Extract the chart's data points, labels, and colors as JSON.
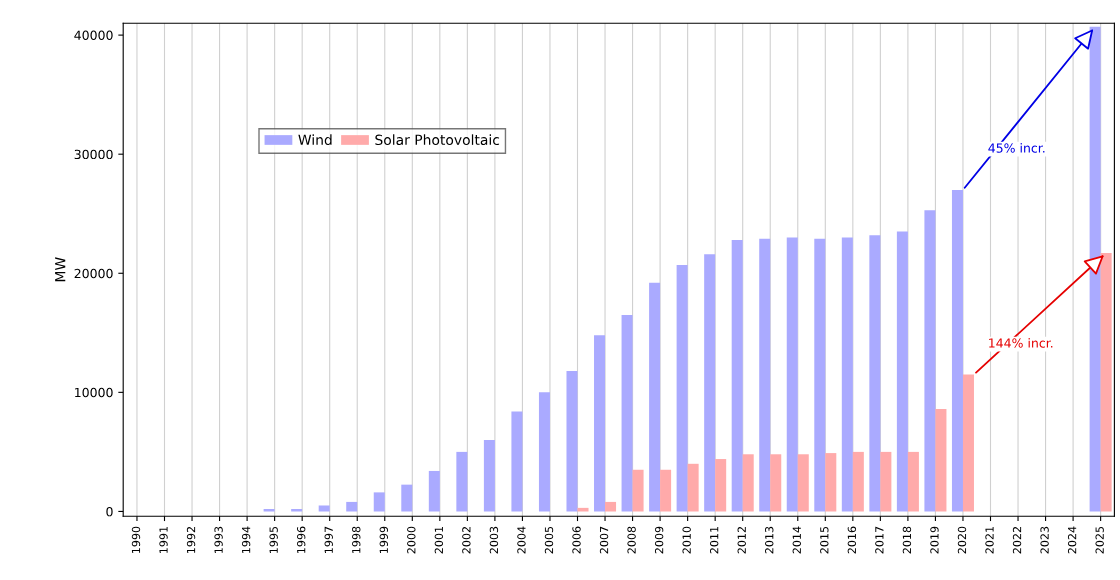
{
  "chart_data": {
    "type": "bar",
    "ylabel": "MW",
    "categories": [
      "1990",
      "1991",
      "1992",
      "1993",
      "1994",
      "1995",
      "1996",
      "1997",
      "1998",
      "1999",
      "2000",
      "2001",
      "2002",
      "2003",
      "2004",
      "2005",
      "2006",
      "2007",
      "2008",
      "2009",
      "2010",
      "2011",
      "2012",
      "2013",
      "2014",
      "2015",
      "2016",
      "2017",
      "2018",
      "2019",
      "2020",
      "2021",
      "2022",
      "2023",
      "2024",
      "2025"
    ],
    "series": [
      {
        "name": "Wind",
        "color": "#aaaaff",
        "values": [
          0,
          0,
          0,
          0,
          0,
          200,
          200,
          500,
          800,
          1600,
          2250,
          3400,
          5000,
          6000,
          8400,
          10000,
          11800,
          14800,
          16500,
          19200,
          20700,
          21600,
          22800,
          22900,
          23000,
          22900,
          23000,
          23200,
          23500,
          25300,
          27000,
          0,
          0,
          0,
          0,
          40700
        ]
      },
      {
        "name": "Solar Photovoltaic",
        "color": "#ffaaaa",
        "values": [
          0,
          0,
          0,
          0,
          0,
          0,
          0,
          0,
          0,
          0,
          0,
          0,
          0,
          0,
          0,
          0,
          300,
          800,
          3500,
          3500,
          4000,
          4400,
          4800,
          4800,
          4800,
          4900,
          5000,
          5000,
          5000,
          8600,
          11500,
          0,
          0,
          0,
          0,
          21700
        ]
      }
    ],
    "ylim": [
      -400,
      41000
    ],
    "yticks": [
      0,
      10000,
      20000,
      30000,
      40000
    ],
    "grid": "x",
    "legend": "upper left",
    "annotations": [
      "45% incr.",
      "144% incr."
    ]
  }
}
